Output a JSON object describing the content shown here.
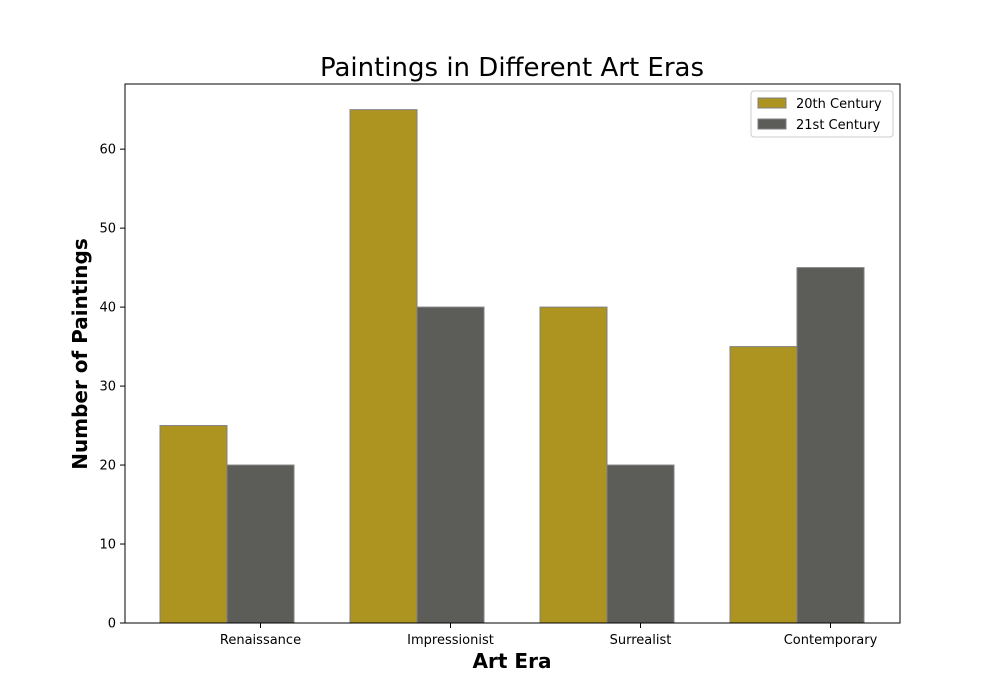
{
  "chart_data": {
    "type": "bar",
    "title": "Paintings in Different Art Eras",
    "xlabel": "Art Era",
    "ylabel": "Number of Paintings",
    "categories": [
      "Renaissance",
      "Impressionist",
      "Surrealist",
      "Contemporary"
    ],
    "series": [
      {
        "name": "20th Century",
        "values": [
          25,
          65,
          40,
          35
        ],
        "color": "#ad9421"
      },
      {
        "name": "21st Century",
        "values": [
          20,
          40,
          20,
          45
        ],
        "color": "#5c5d58"
      }
    ],
    "ylim": [
      0,
      68.25
    ],
    "yticks": [
      0,
      10,
      20,
      30,
      40,
      50,
      60
    ],
    "grid": false,
    "legend_position": "top-right",
    "edge_color": "#808080"
  }
}
